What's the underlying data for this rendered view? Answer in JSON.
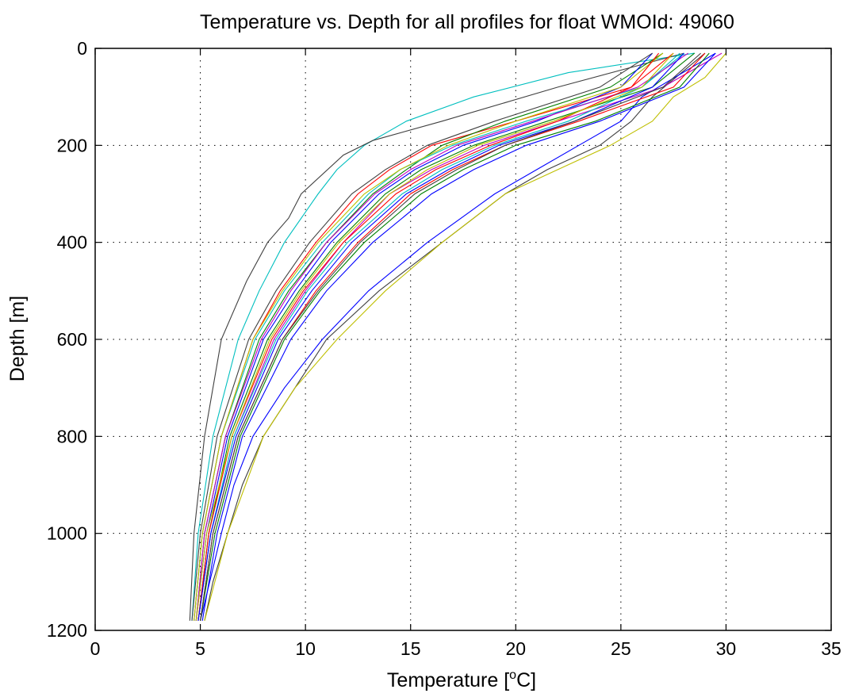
{
  "chart_data": {
    "type": "line",
    "title": "Temperature vs. Depth for all profiles for float WMOId: 49060",
    "xlabel_prefix": "Temperature [",
    "xlabel_sup": "o",
    "xlabel_suffix": "C]",
    "ylabel": "Depth [m]",
    "xlim": [
      0,
      35
    ],
    "ylim": [
      0,
      1200
    ],
    "y_reversed": true,
    "grid": true,
    "x_ticks": [
      0,
      5,
      10,
      15,
      20,
      25,
      30,
      35
    ],
    "y_ticks": [
      0,
      200,
      400,
      600,
      800,
      1000,
      1200
    ],
    "x_tick_labels": [
      "0",
      "5",
      "10",
      "15",
      "20",
      "25",
      "30",
      "35"
    ],
    "y_tick_labels": [
      "0",
      "200",
      "400",
      "600",
      "800",
      "1000",
      "1200"
    ],
    "series_colors": [
      "#0000ff",
      "#008000",
      "#ff0000",
      "#00bfbf",
      "#bf00bf",
      "#bfbf00",
      "#404040"
    ],
    "series": [
      {
        "color": "#00bfbf",
        "depth": [
          10,
          50,
          100,
          150,
          200,
          250,
          300,
          400,
          500,
          600,
          800,
          1000,
          1180
        ],
        "temperature": [
          28.5,
          22.5,
          18.0,
          14.8,
          12.8,
          11.5,
          10.6,
          9.0,
          7.8,
          6.8,
          5.6,
          4.9,
          4.6
        ]
      },
      {
        "color": "#404040",
        "depth": [
          10,
          80,
          150,
          190,
          220,
          300,
          350,
          400,
          480,
          600,
          800,
          1000,
          1180
        ],
        "temperature": [
          28.0,
          22.0,
          16.5,
          13.2,
          11.8,
          9.8,
          9.2,
          8.2,
          7.2,
          6.0,
          5.2,
          4.7,
          4.5
        ]
      },
      {
        "color": "#404040",
        "depth": [
          10,
          100,
          150,
          200,
          250,
          300,
          400,
          500,
          600,
          700,
          800,
          900,
          1000,
          1100,
          1180
        ],
        "temperature": [
          29.0,
          26.5,
          25.5,
          24.0,
          21.5,
          19.5,
          16.5,
          13.5,
          11.0,
          9.5,
          8.0,
          7.0,
          6.3,
          5.6,
          5.2
        ]
      },
      {
        "color": "#bfbf00",
        "depth": [
          10,
          60,
          100,
          150,
          200,
          250,
          300,
          400,
          500,
          600,
          700,
          800,
          1000,
          1180
        ],
        "temperature": [
          30.0,
          29.0,
          27.5,
          26.5,
          24.5,
          22.0,
          19.5,
          16.5,
          13.8,
          11.5,
          9.5,
          8.0,
          6.3,
          5.2
        ]
      },
      {
        "color": "#0000ff",
        "depth": [
          10,
          100,
          150,
          200,
          250,
          300,
          400,
          500,
          600,
          700,
          800,
          900,
          1000,
          1180
        ],
        "temperature": [
          29.5,
          26.0,
          25.0,
          23.0,
          21.0,
          19.0,
          15.8,
          13.0,
          10.8,
          9.0,
          7.5,
          6.6,
          6.0,
          5.0
        ]
      },
      {
        "color": "#ff0000",
        "depth": [
          10,
          80,
          150,
          200,
          250,
          300,
          400,
          500,
          600,
          800,
          1000,
          1180
        ],
        "temperature": [
          27.5,
          25.5,
          20.0,
          16.0,
          14.0,
          12.5,
          10.5,
          8.8,
          7.5,
          6.0,
          5.1,
          4.7
        ]
      },
      {
        "color": "#008000",
        "depth": [
          10,
          80,
          150,
          200,
          250,
          300,
          400,
          500,
          600,
          800,
          1000,
          1180
        ],
        "temperature": [
          27.0,
          24.5,
          19.5,
          16.5,
          14.8,
          13.2,
          11.0,
          9.2,
          7.8,
          6.2,
          5.2,
          4.8
        ]
      },
      {
        "color": "#bf00bf",
        "depth": [
          10,
          80,
          150,
          200,
          250,
          300,
          400,
          500,
          600,
          800,
          1000,
          1180
        ],
        "temperature": [
          29.8,
          27.0,
          22.0,
          18.5,
          16.0,
          14.0,
          11.8,
          10.0,
          8.5,
          6.6,
          5.5,
          4.9
        ]
      },
      {
        "color": "#0000ff",
        "depth": [
          10,
          80,
          150,
          200,
          250,
          300,
          400,
          500,
          600,
          800,
          1000,
          1180
        ],
        "temperature": [
          26.5,
          25.0,
          21.0,
          17.5,
          15.2,
          13.5,
          11.2,
          9.5,
          8.0,
          6.3,
          5.3,
          4.8
        ]
      },
      {
        "color": "#00bfbf",
        "depth": [
          10,
          80,
          150,
          200,
          250,
          300,
          400,
          500,
          600,
          800,
          1000,
          1180
        ],
        "temperature": [
          28.0,
          26.0,
          20.5,
          17.0,
          14.5,
          13.0,
          10.8,
          9.0,
          7.6,
          6.0,
          5.1,
          4.7
        ]
      },
      {
        "color": "#ff0000",
        "depth": [
          10,
          80,
          150,
          200,
          250,
          300,
          400,
          500,
          600,
          800,
          1000,
          1180
        ],
        "temperature": [
          29.0,
          27.5,
          23.0,
          19.5,
          17.0,
          15.0,
          12.5,
          10.5,
          8.9,
          6.8,
          5.6,
          5.0
        ]
      },
      {
        "color": "#008000",
        "depth": [
          10,
          80,
          150,
          200,
          250,
          300,
          400,
          500,
          600,
          800,
          1000,
          1180
        ],
        "temperature": [
          28.5,
          26.5,
          21.5,
          18.0,
          15.5,
          13.8,
          11.5,
          9.7,
          8.2,
          6.4,
          5.4,
          4.9
        ]
      },
      {
        "color": "#bfbf00",
        "depth": [
          10,
          80,
          150,
          200,
          250,
          300,
          400,
          500,
          600,
          800,
          1000,
          1180
        ],
        "temperature": [
          27.0,
          25.0,
          20.0,
          16.8,
          14.5,
          12.8,
          10.6,
          8.9,
          7.5,
          6.0,
          5.1,
          4.7
        ]
      },
      {
        "color": "#404040",
        "depth": [
          10,
          80,
          150,
          200,
          250,
          300,
          400,
          500,
          600,
          800,
          1000,
          1180
        ],
        "temperature": [
          26.5,
          24.0,
          19.0,
          15.8,
          13.8,
          12.2,
          10.2,
          8.6,
          7.3,
          5.8,
          5.0,
          4.6
        ]
      },
      {
        "color": "#0000ff",
        "depth": [
          10,
          80,
          150,
          200,
          250,
          300,
          400,
          500,
          600,
          800,
          1000,
          1180
        ],
        "temperature": [
          29.5,
          28.0,
          24.0,
          20.5,
          18.0,
          16.0,
          13.2,
          11.0,
          9.3,
          7.0,
          5.8,
          5.1
        ]
      },
      {
        "color": "#00bfbf",
        "depth": [
          10,
          80,
          150,
          200,
          250,
          300,
          400,
          500,
          600,
          800,
          1000,
          1180
        ],
        "temperature": [
          27.8,
          26.0,
          22.5,
          19.0,
          16.5,
          14.6,
          12.0,
          10.1,
          8.6,
          6.6,
          5.5,
          4.9
        ]
      },
      {
        "color": "#bf00bf",
        "depth": [
          10,
          80,
          150,
          200,
          250,
          300,
          400,
          500,
          600,
          800,
          1000,
          1180
        ],
        "temperature": [
          28.2,
          25.8,
          20.8,
          17.2,
          15.0,
          13.3,
          11.0,
          9.3,
          7.9,
          6.2,
          5.2,
          4.8
        ]
      },
      {
        "color": "#ff0000",
        "depth": [
          10,
          80,
          150,
          200,
          250,
          300,
          400,
          500,
          600,
          800,
          1000,
          1180
        ],
        "temperature": [
          26.8,
          25.5,
          22.0,
          18.8,
          16.2,
          14.3,
          11.8,
          9.9,
          8.4,
          6.5,
          5.4,
          4.9
        ]
      },
      {
        "color": "#008000",
        "depth": [
          10,
          80,
          150,
          200,
          250,
          300,
          400,
          500,
          600,
          800,
          1000,
          1180
        ],
        "temperature": [
          29.2,
          27.8,
          23.8,
          20.0,
          17.5,
          15.5,
          12.8,
          10.7,
          9.0,
          6.9,
          5.7,
          5.0
        ]
      },
      {
        "color": "#0000ff",
        "depth": [
          10,
          80,
          150,
          200,
          250,
          300,
          400,
          500,
          600,
          800,
          1000,
          1180
        ],
        "temperature": [
          28.0,
          26.5,
          22.8,
          19.2,
          16.8,
          14.8,
          12.2,
          10.3,
          8.7,
          6.7,
          5.5,
          4.9
        ]
      },
      {
        "color": "#bfbf00",
        "depth": [
          10,
          80,
          150,
          200,
          250,
          300,
          400,
          500,
          600,
          800,
          1000,
          1180
        ],
        "temperature": [
          27.5,
          26.0,
          21.8,
          18.2,
          15.8,
          14.0,
          11.6,
          9.8,
          8.3,
          6.5,
          5.3,
          4.8
        ]
      },
      {
        "color": "#404040",
        "depth": [
          10,
          80,
          150,
          200,
          250,
          300,
          400,
          500,
          600,
          800,
          1000,
          1180
        ],
        "temperature": [
          28.8,
          27.0,
          22.8,
          19.5,
          17.2,
          15.2,
          12.6,
          10.6,
          8.9,
          6.8,
          5.6,
          5.0
        ]
      }
    ]
  }
}
